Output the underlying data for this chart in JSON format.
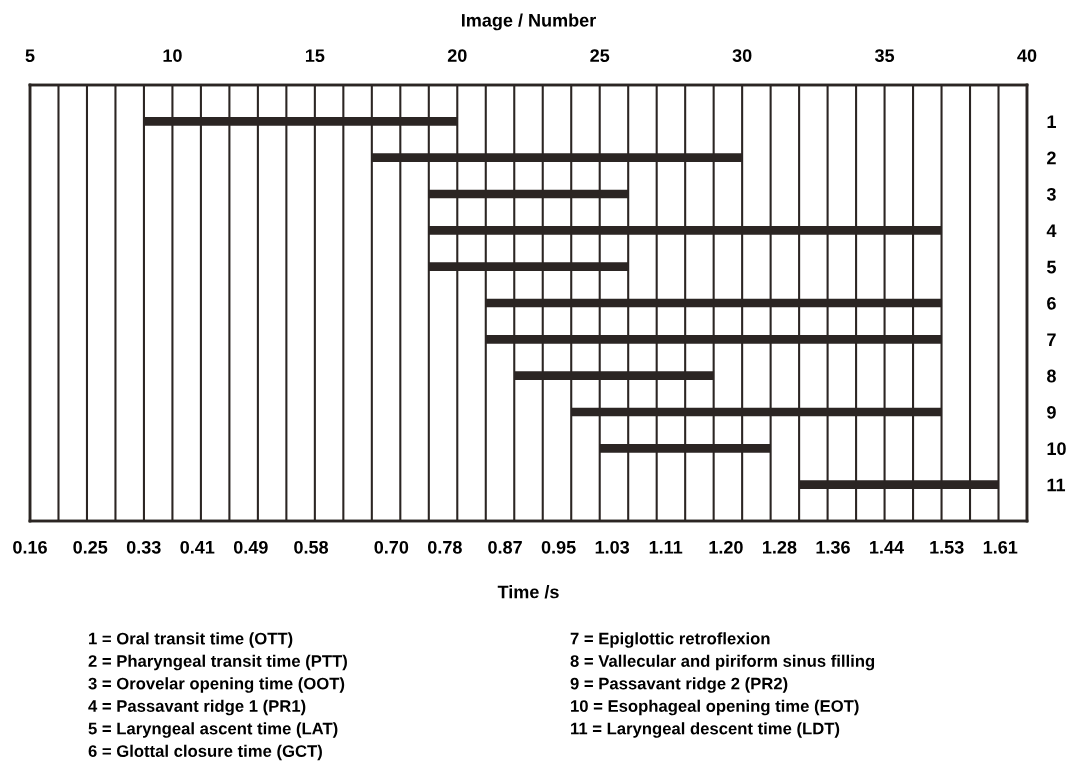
{
  "chart_data": {
    "type": "bar",
    "orientation": "horizontal",
    "xlabel": "Image / Number",
    "x2label": "Time /s",
    "categories": [
      "1",
      "2",
      "3",
      "4",
      "5",
      "6",
      "7",
      "8",
      "9",
      "10",
      "11"
    ],
    "base": [
      9,
      17,
      19,
      19,
      19,
      21,
      21,
      22,
      24,
      25,
      32
    ],
    "values": [
      11,
      13,
      7,
      18,
      7,
      16,
      16,
      7,
      13,
      6,
      7
    ],
    "color": "#2b2523",
    "xlim": [
      5,
      40
    ],
    "xticks": [
      5,
      {
        "value": 6,
        "label": null
      },
      {
        "value": 7,
        "label": null
      },
      {
        "value": 8,
        "label": null
      },
      {
        "value": 9,
        "label": null
      },
      10,
      {
        "value": 11,
        "label": null
      },
      {
        "value": 12,
        "label": null
      },
      {
        "value": 13,
        "label": null
      },
      {
        "value": 14,
        "label": null
      },
      15,
      {
        "value": 16,
        "label": null
      },
      {
        "value": 17,
        "label": null
      },
      {
        "value": 18,
        "label": null
      },
      {
        "value": 19,
        "label": null
      },
      20,
      {
        "value": 21,
        "label": null
      },
      {
        "value": 22,
        "label": null
      },
      {
        "value": 23,
        "label": null
      },
      {
        "value": 24,
        "label": null
      },
      25,
      {
        "value": 26,
        "label": null
      },
      {
        "value": 27,
        "label": null
      },
      {
        "value": 28,
        "label": null
      },
      {
        "value": 29,
        "label": null
      },
      30,
      {
        "value": 31,
        "label": null
      },
      {
        "value": 32,
        "label": null
      },
      {
        "value": 33,
        "label": null
      },
      {
        "value": 34,
        "label": null
      },
      35,
      {
        "value": 36,
        "label": null
      },
      {
        "value": 37,
        "label": null
      },
      {
        "value": 38,
        "label": null
      },
      {
        "value": 39,
        "label": null
      },
      40
    ],
    "x2lim": [
      0.16,
      1.65
    ],
    "x2ticks": [
      0.16,
      0.25,
      0.33,
      0.41,
      0.49,
      0.58,
      {
        "value": 0.7,
        "label": "0.70"
      },
      0.78,
      0.87,
      0.95,
      1.03,
      1.11,
      {
        "value": 1.2,
        "label": "1.20"
      },
      1.28,
      1.36,
      1.44,
      1.53,
      1.61
    ],
    "grid": "x",
    "annotations": [
      "1 = Oral transit time (OTT)",
      "2 = Pharyngeal transit time (PTT)",
      "3 = Orovelar opening time (OOT)",
      "4 = Passavant ridge 1 (PR1)",
      "5 = Laryngeal ascent time (LAT)",
      "6 = Glottal closure time (GCT)",
      "7 = Epiglottic retroflexion",
      "8 = Vallecular and piriform sinus filling",
      "9 = Passavant ridge 2 (PR2)",
      "10 = Esophageal opening time (EOT)",
      "11 = Laryngeal descent time (LDT)"
    ]
  }
}
